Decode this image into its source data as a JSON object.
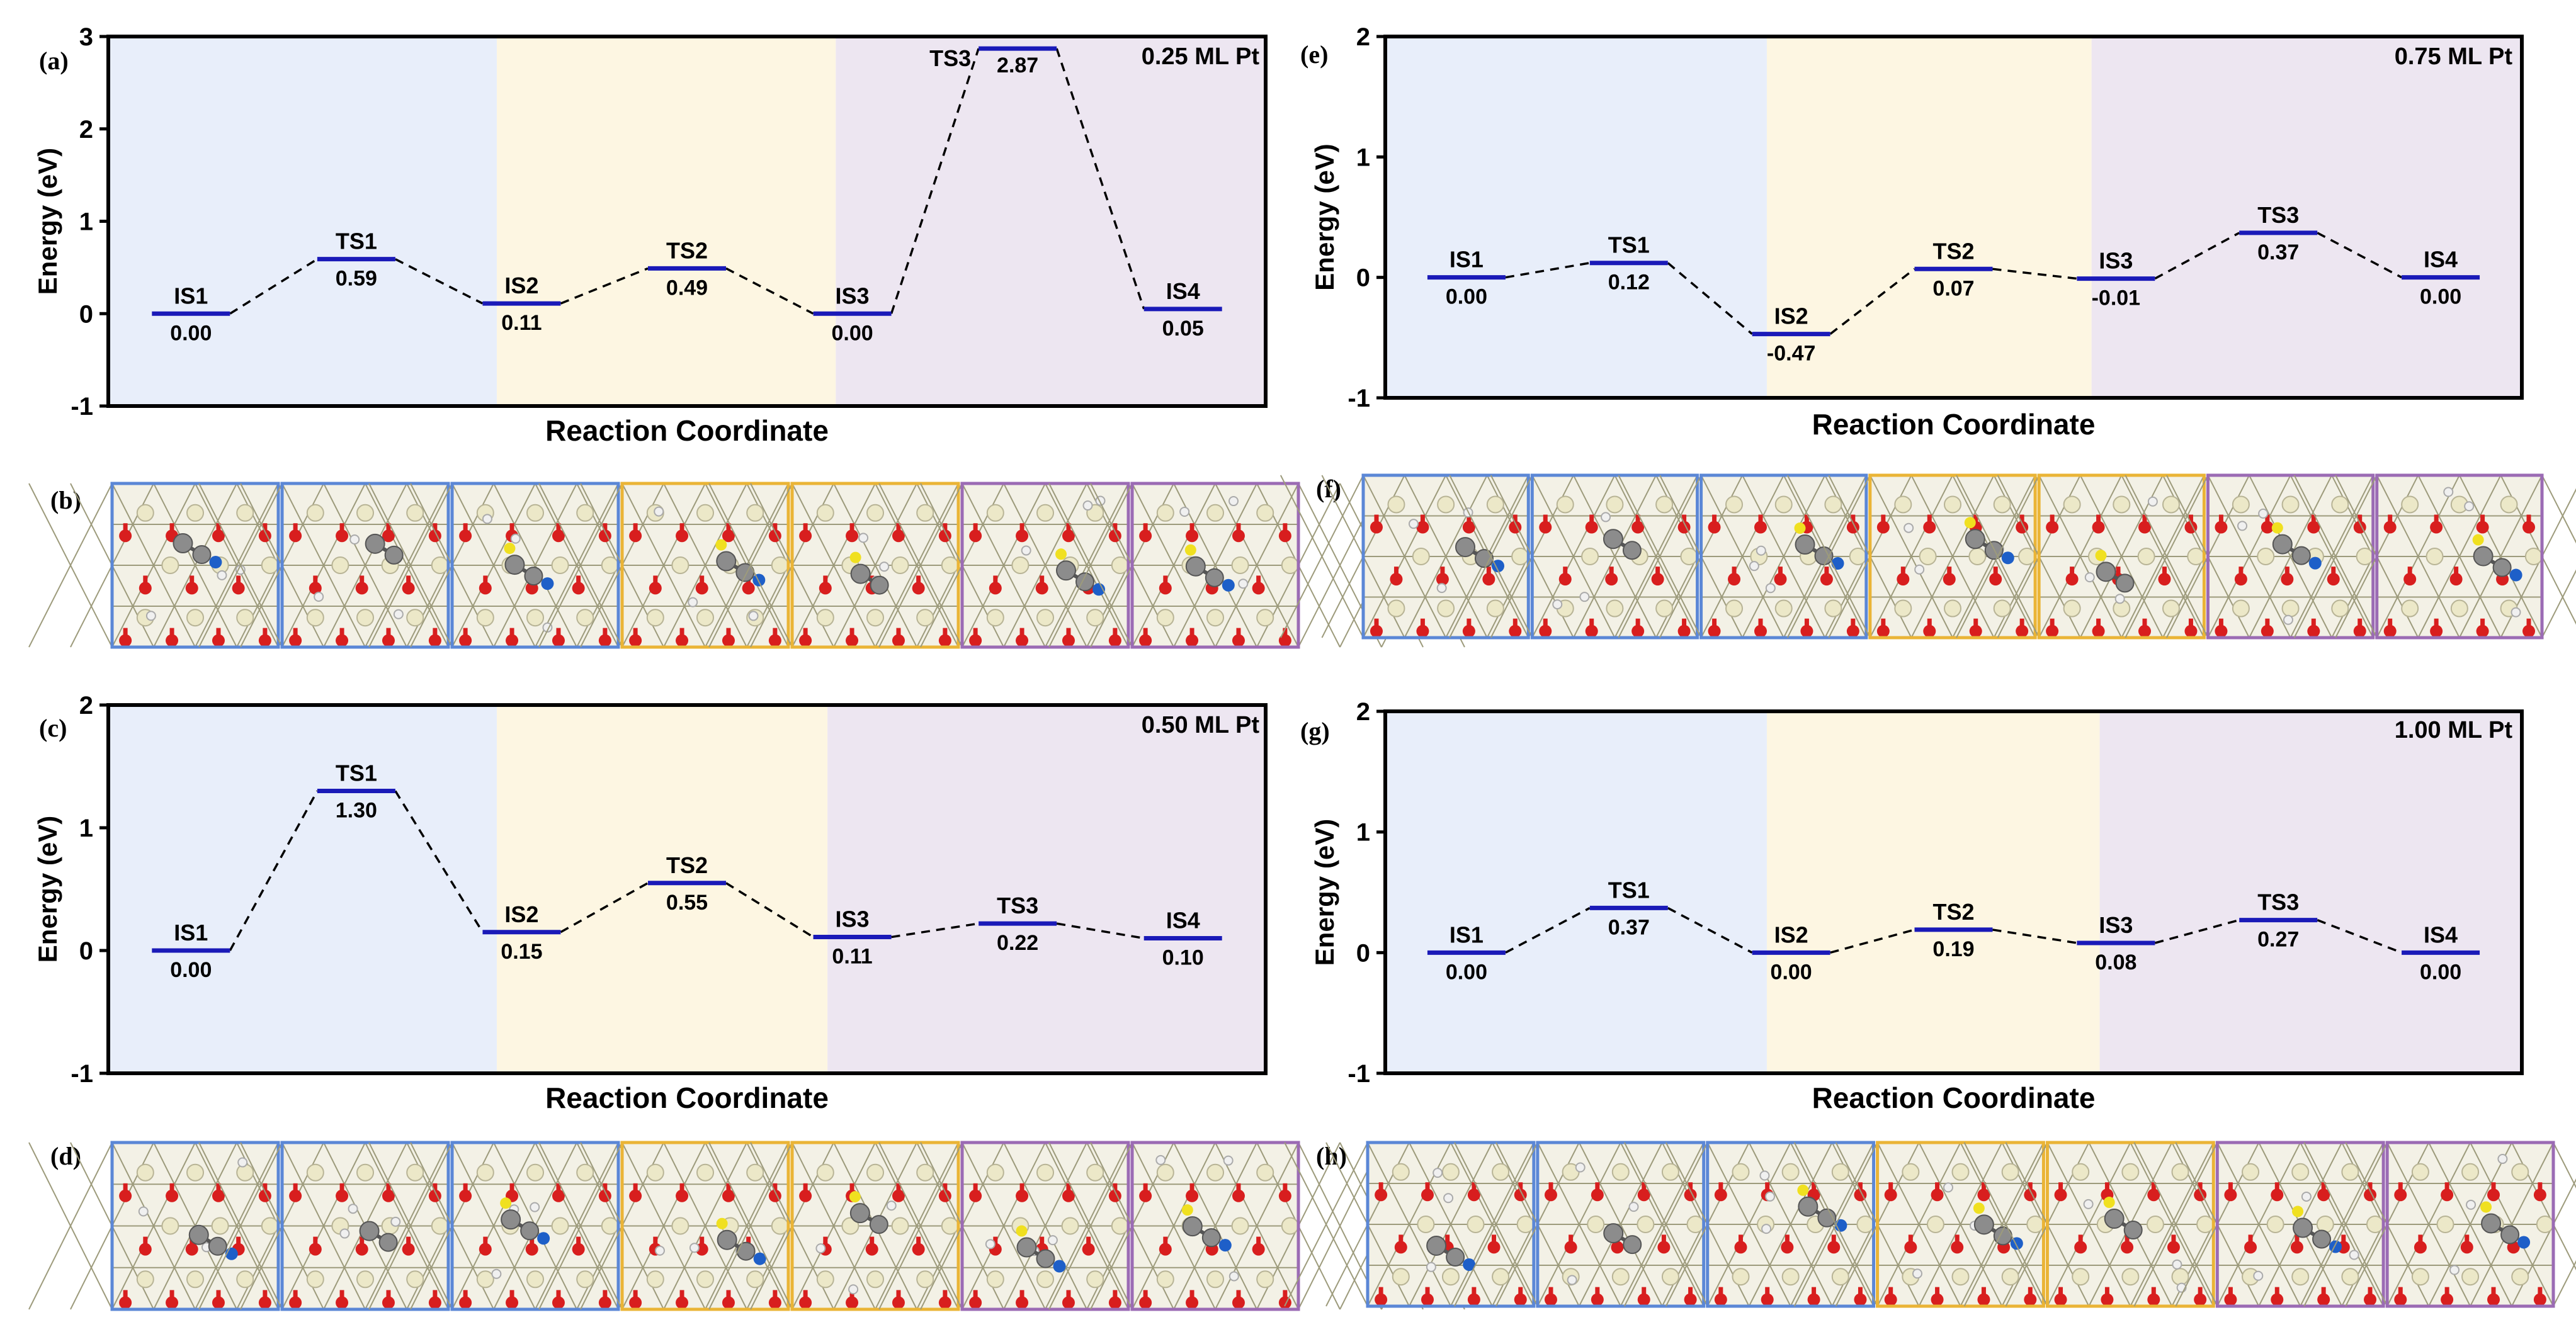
{
  "colors": {
    "region_is12": "#e8eefa",
    "region_is23": "#fdf6e2",
    "region_is34": "#ede6f1",
    "level_line": "#1a1ab8",
    "frame_blue": "#5b87d6",
    "frame_orange": "#eab436",
    "frame_purple": "#9b6bb4",
    "atom_o": "#d81e1e",
    "atom_pt": "#ece8c8",
    "atom_c": "#8c8c8c",
    "atom_h": "#f0f0f0",
    "atom_n": "#1e5fc8",
    "atom_s": "#f0e020"
  },
  "x_axis_label": "Reaction Coordinate",
  "y_axis_label": "Energy (eV)",
  "chart_data": [
    {
      "panel": "(a)",
      "type": "line",
      "title": "0.25 ML Pt",
      "xlabel": "Reaction Coordinate",
      "ylabel": "Energy (eV)",
      "ylim": [
        -1,
        3
      ],
      "yticks": [
        "-1",
        "0",
        "1",
        "2",
        "3"
      ],
      "states": [
        "IS1",
        "TS1",
        "IS2",
        "TS2",
        "IS3",
        "TS3",
        "IS4"
      ],
      "labels": [
        "0.00",
        "0.59",
        "0.11",
        "0.49",
        "0.00",
        "2.87",
        "0.05"
      ],
      "values": [
        0.0,
        0.59,
        0.11,
        0.49,
        0.0,
        2.87,
        0.05
      ],
      "region_edges": [
        2.35,
        4.4
      ]
    },
    {
      "panel": "(c)",
      "type": "line",
      "title": "0.50 ML Pt",
      "xlabel": "Reaction Coordinate",
      "ylabel": "Energy (eV)",
      "ylim": [
        -1,
        2
      ],
      "yticks": [
        "-1",
        "0",
        "1",
        "2"
      ],
      "states": [
        "IS1",
        "TS1",
        "IS2",
        "TS2",
        "IS3",
        "TS3",
        "IS4"
      ],
      "labels": [
        "0.00",
        "1.30",
        "0.15",
        "0.55",
        "0.11",
        "0.22",
        "0.10"
      ],
      "values": [
        0.0,
        1.3,
        0.15,
        0.55,
        0.11,
        0.22,
        0.1
      ],
      "region_edges": [
        2.35,
        4.35
      ]
    },
    {
      "panel": "(e)",
      "type": "line",
      "title": "0.75 ML Pt",
      "xlabel": "Reaction Coordinate",
      "ylabel": "Energy (eV)",
      "ylim": [
        -1,
        2
      ],
      "yticks": [
        "-1",
        "0",
        "1",
        "2"
      ],
      "states": [
        "IS1",
        "TS1",
        "IS2",
        "TS2",
        "IS3",
        "TS3",
        "IS4"
      ],
      "labels": [
        "0.00",
        "0.12",
        "-0.47",
        "0.07",
        "-0.01",
        "0.37",
        "0.00"
      ],
      "values": [
        0.0,
        0.12,
        -0.47,
        0.07,
        -0.01,
        0.37,
        0.0
      ],
      "region_edges": [
        2.35,
        4.35
      ]
    },
    {
      "panel": "(g)",
      "type": "line",
      "title": "1.00 ML Pt",
      "xlabel": "Reaction Coordinate",
      "ylabel": "Energy (eV)",
      "ylim": [
        -1,
        2
      ],
      "yticks": [
        "-1",
        "0",
        "1",
        "2"
      ],
      "states": [
        "IS1",
        "TS1",
        "IS2",
        "TS2",
        "IS3",
        "TS3",
        "IS4"
      ],
      "labels": [
        "0.00",
        "0.37",
        "0.00",
        "0.19",
        "0.08",
        "0.27",
        "0.00"
      ],
      "values": [
        0.0,
        0.37,
        0.0,
        0.19,
        0.08,
        0.27,
        0.0
      ],
      "region_edges": [
        2.35,
        4.4
      ]
    }
  ],
  "structure_rows": [
    {
      "panel": "(b)",
      "frames": [
        "frame_blue",
        "frame_blue",
        "frame_blue",
        "frame_orange",
        "frame_orange",
        "frame_purple",
        "frame_purple"
      ]
    },
    {
      "panel": "(d)",
      "frames": [
        "frame_blue",
        "frame_blue",
        "frame_blue",
        "frame_orange",
        "frame_orange",
        "frame_purple",
        "frame_purple"
      ]
    },
    {
      "panel": "(f)",
      "frames": [
        "frame_blue",
        "frame_blue",
        "frame_blue",
        "frame_orange",
        "frame_orange",
        "frame_purple",
        "frame_purple"
      ]
    },
    {
      "panel": "(h)",
      "frames": [
        "frame_blue",
        "frame_blue",
        "frame_blue",
        "frame_orange",
        "frame_orange",
        "frame_purple",
        "frame_purple"
      ]
    }
  ]
}
